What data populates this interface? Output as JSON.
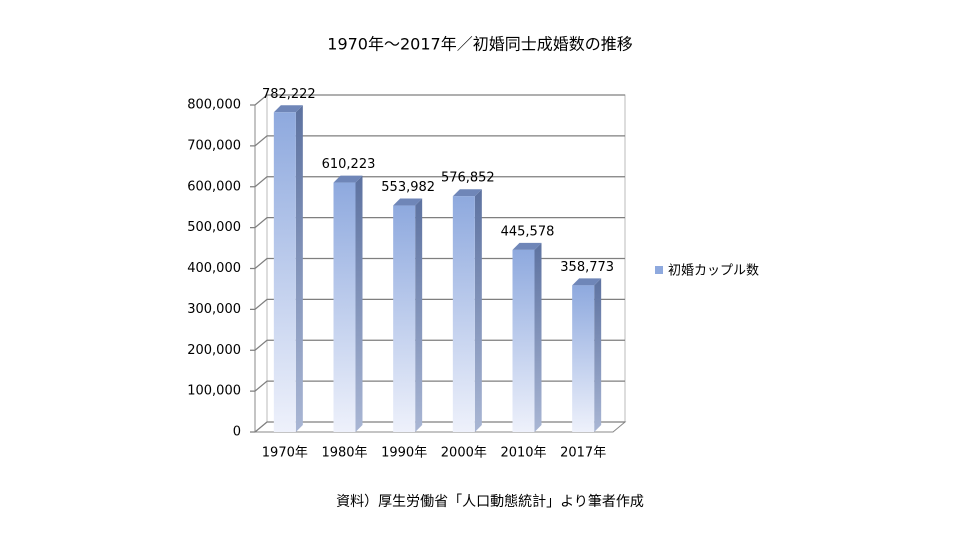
{
  "chart_data": {
    "type": "bar3d",
    "title": "1970年～2017年／初婚同士成婚数の推移",
    "categories": [
      "1970年",
      "1980年",
      "1990年",
      "2000年",
      "2010年",
      "2017年"
    ],
    "series": [
      {
        "name": "初婚カップル数",
        "color": "#8ea9de",
        "values": [
          782222,
          610223,
          553982,
          576852,
          445578,
          358773
        ],
        "value_labels": [
          "782,222",
          "610,223",
          "553,982",
          "576,852",
          "445,578",
          "358,773"
        ]
      }
    ],
    "ylim": [
      0,
      800000
    ],
    "yticks": [
      0,
      {
        "value": 100000,
        "label": "100,000"
      },
      {
        "value": 200000,
        "label": "200,000"
      },
      {
        "value": 300000,
        "label": "300,000"
      },
      {
        "value": 400000,
        "label": "400,000"
      },
      {
        "value": 500000,
        "label": "500,000"
      },
      {
        "value": 600000,
        "label": "600,000"
      },
      {
        "value": 700000,
        "label": "700,000"
      },
      {
        "value": 800000,
        "label": "800,000"
      }
    ],
    "grid": true,
    "legend": "right",
    "note": "資料）厚生労働省「人口動態統計」より筆者作成"
  }
}
